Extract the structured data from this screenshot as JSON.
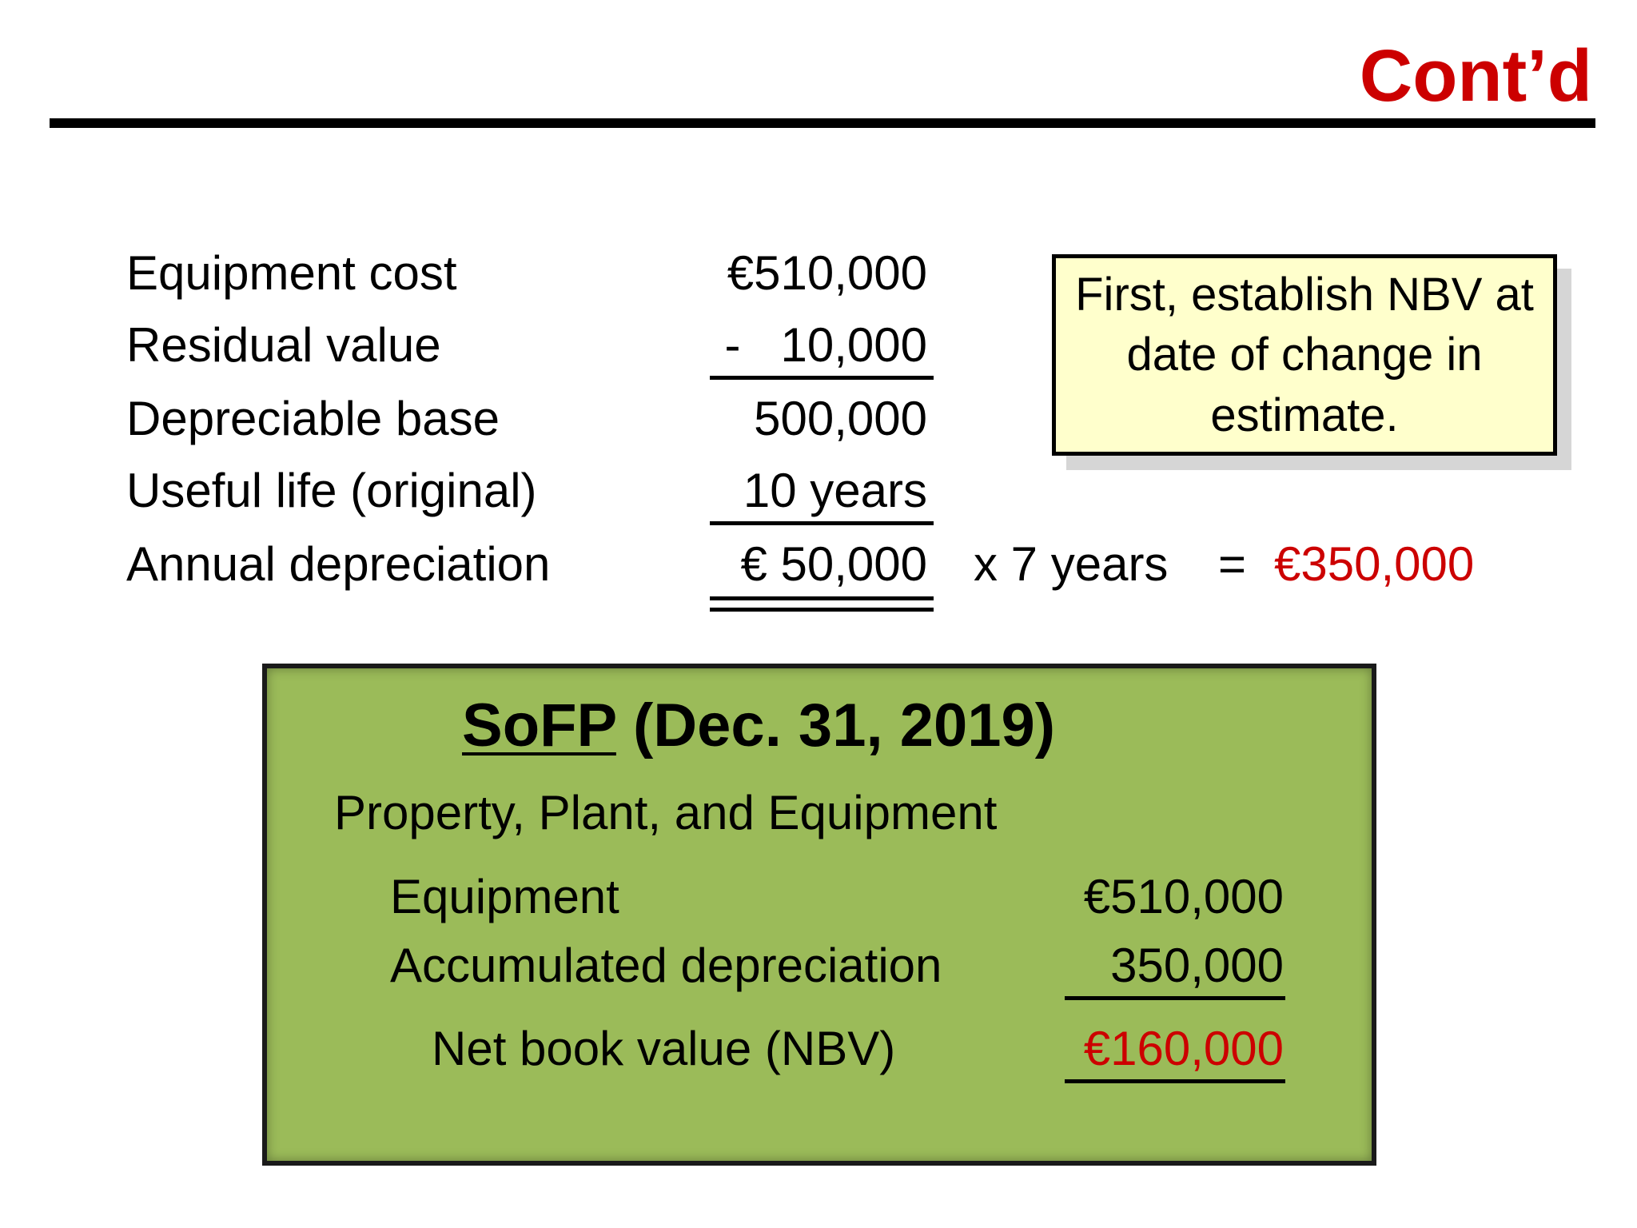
{
  "slide": {
    "title": "Cont’d"
  },
  "calculation": {
    "rows": [
      {
        "label": "Equipment cost",
        "value": "€510,000"
      },
      {
        "label": "Residual value",
        "value": "-   10,000"
      },
      {
        "label": "Depreciable base",
        "value": "500,000"
      },
      {
        "label": "Useful life (original)",
        "value": "10 years"
      },
      {
        "label": "Annual depreciation",
        "value": "€ 50,000"
      }
    ],
    "multiplier": "x  7 years",
    "equals": "=",
    "result": "€350,000"
  },
  "callout": {
    "text": "First, establish NBV at date of change in estimate."
  },
  "sofp": {
    "heading_underlined": "SoFP",
    "heading_rest": " (Dec. 31, 2019)",
    "section": "Property, Plant, and Equipment",
    "equipment_label": "Equipment",
    "equipment_value": "€510,000",
    "accum_label": "Accumulated depreciation",
    "accum_value": "350,000",
    "nbv_label": "Net book value (NBV)",
    "nbv_value": "€160,000"
  },
  "colors": {
    "accent_red": "#cc0000",
    "callout_bg": "#ffffcc",
    "sofp_bg": "#9bbb59"
  }
}
